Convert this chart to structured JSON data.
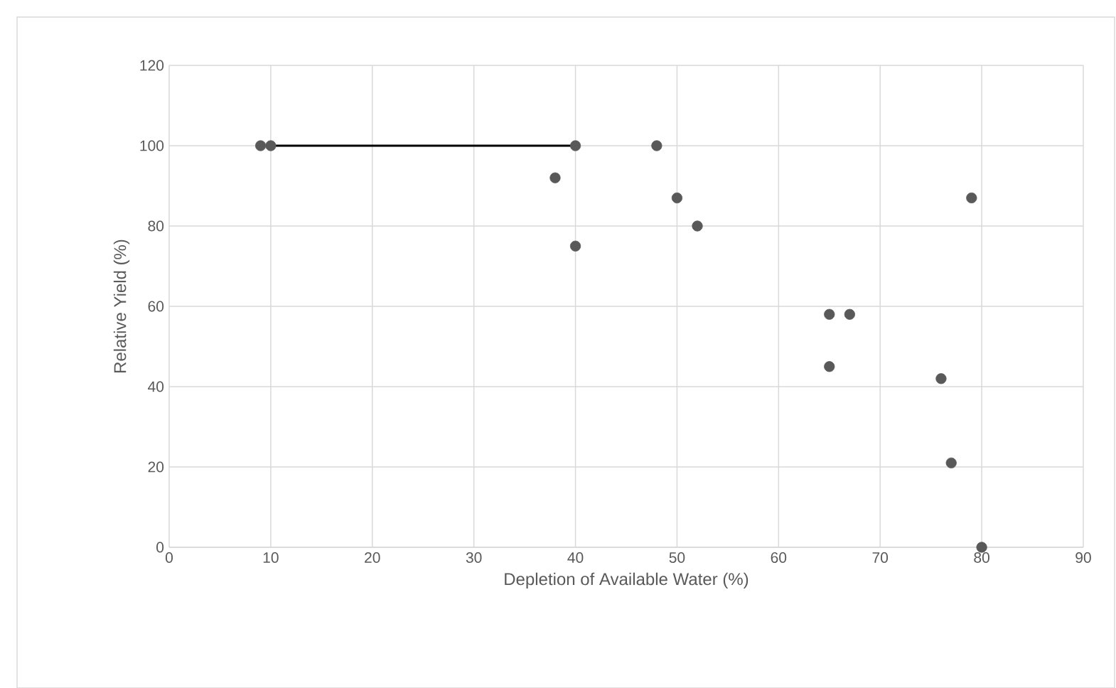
{
  "chart_data": {
    "type": "scatter",
    "xlabel": "Depletion of Available Water (%)",
    "ylabel": "Relative Yield (%)",
    "xlim": [
      0,
      90
    ],
    "xticks": [
      0,
      10,
      20,
      30,
      40,
      50,
      60,
      70,
      80,
      90
    ],
    "ylim": [
      0,
      120
    ],
    "yticks": [
      0,
      20,
      40,
      60,
      80,
      100,
      120
    ],
    "grid": true,
    "series": [
      {
        "color": "#595959",
        "marker": "circle",
        "x": [
          9,
          10,
          40,
          38,
          40,
          48,
          50,
          52,
          65,
          67,
          65,
          76,
          77,
          79,
          80
        ],
        "values": [
          100,
          100,
          100,
          92,
          75,
          100,
          87,
          80,
          58,
          58,
          45,
          42,
          21,
          87,
          0
        ]
      },
      {
        "type": "line",
        "color": "#000000",
        "marker": "none",
        "x": [
          10,
          40
        ],
        "values": [
          100,
          100
        ]
      }
    ]
  }
}
